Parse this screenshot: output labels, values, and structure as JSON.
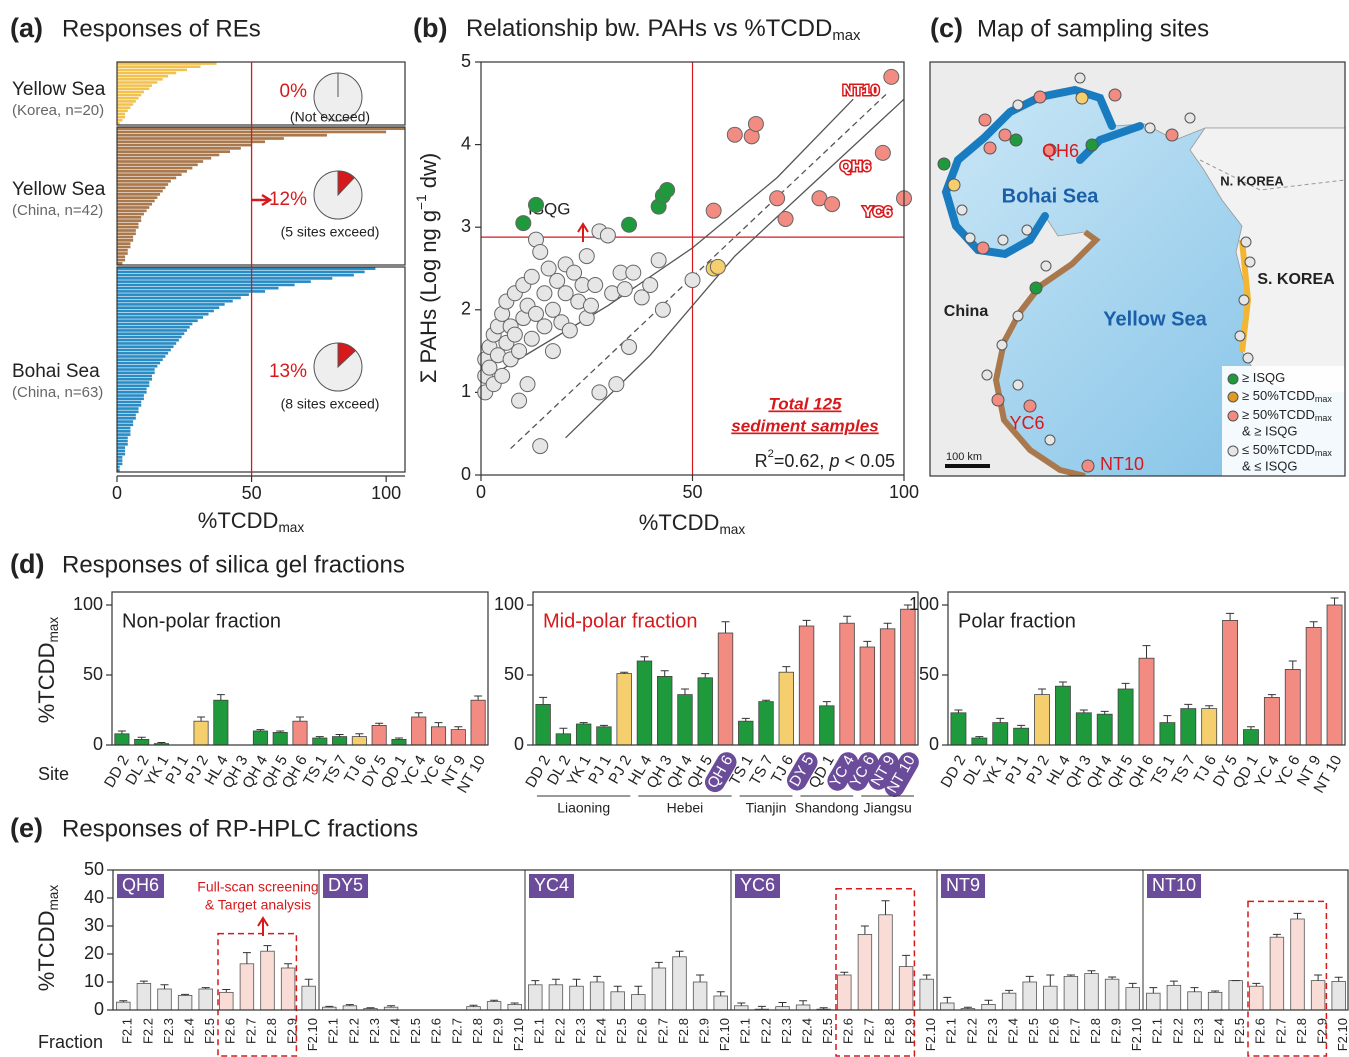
{
  "chart_data": [
    {
      "type": "hbar",
      "label": "(a)",
      "title": "Responses of REs",
      "xlim": [
        0,
        107
      ],
      "xticks": [
        0,
        50,
        100
      ],
      "xlabel": [
        "%TCDD",
        "max"
      ],
      "threshold": 50,
      "threshold_color": "#d7191c",
      "groups": [
        {
          "name": "Yellow Sea",
          "sub": "(Korea, n=20)",
          "color": "#f2c14e",
          "values": [
            37,
            31,
            26,
            22,
            19,
            17,
            15,
            13,
            12,
            10,
            9,
            8,
            7,
            6,
            5,
            4,
            3,
            3,
            2,
            1
          ],
          "pie": {
            "value": 0,
            "label": "0%",
            "note": "(Not exceed)"
          }
        },
        {
          "name": "Yellow Sea",
          "sub": "(China, n=42)",
          "color": "#a9784c",
          "values": [
            107,
            100,
            78,
            62,
            55,
            50,
            46,
            42,
            38,
            35,
            32,
            30,
            28,
            26,
            24,
            22,
            20,
            19,
            18,
            17,
            16,
            15,
            14,
            13,
            12,
            11,
            10,
            9,
            9,
            8,
            8,
            7,
            7,
            6,
            6,
            5,
            5,
            4,
            4,
            3,
            3,
            2
          ],
          "pie": {
            "value": 12,
            "label": "12%",
            "note": "(5 sites exceed)"
          }
        },
        {
          "name": "Bohai Sea",
          "sub": "(China, n=63)",
          "color": "#2a8cc4",
          "values": [
            96,
            92,
            88,
            80,
            72,
            66,
            60,
            55,
            49,
            46,
            43,
            40,
            38,
            36,
            34,
            32,
            30,
            28,
            27,
            26,
            25,
            24,
            23,
            22,
            21,
            20,
            19,
            18,
            17,
            16,
            15,
            14,
            14,
            13,
            13,
            12,
            12,
            11,
            11,
            10,
            10,
            9,
            9,
            8,
            8,
            7,
            7,
            6,
            6,
            5,
            5,
            5,
            4,
            4,
            4,
            3,
            3,
            3,
            2,
            2,
            2,
            1,
            1
          ],
          "pie": {
            "value": 13,
            "label": "13%",
            "note": "(8 sites exceed)"
          }
        }
      ]
    },
    {
      "type": "scatter",
      "label": "(b)",
      "title": [
        "Relationship bw. PAHs vs %TCDD",
        "max"
      ],
      "xlim": [
        0,
        100
      ],
      "ylim": [
        0,
        5
      ],
      "xticks": [
        0,
        50,
        100
      ],
      "yticks": [
        0,
        1,
        2,
        3,
        4,
        5
      ],
      "xlabel": [
        "%TCDD",
        "max"
      ],
      "ylabel": [
        "Σ PAHs (Log ng g",
        "−1",
        " dw)"
      ],
      "threshold_x": 50,
      "isqg": {
        "value": 2.88,
        "label": "ISQG"
      },
      "fit": {
        "x": [
          7,
          96
        ],
        "y": [
          0.32,
          4.62
        ]
      },
      "ci": [
        {
          "x": [
            4,
            30,
            50,
            70,
            88
          ],
          "y": [
            1.25,
            2.05,
            2.75,
            3.6,
            4.55
          ]
        },
        {
          "x": [
            20,
            40,
            60,
            80,
            100
          ],
          "y": [
            0.45,
            1.45,
            2.65,
            3.6,
            4.55
          ]
        }
      ],
      "series": [
        {
          "color": "#e6e6e6",
          "x": [
            1,
            1,
            1,
            2,
            2,
            3,
            3,
            4,
            4,
            5,
            5,
            6,
            6,
            7,
            7,
            8,
            8,
            9,
            9,
            10,
            10,
            11,
            11,
            12,
            12,
            13,
            13,
            14,
            15,
            15,
            16,
            17,
            17,
            18,
            19,
            20,
            20,
            21,
            22,
            23,
            24,
            25,
            25,
            26,
            27,
            28,
            30,
            31,
            33,
            34,
            35,
            36,
            38,
            40,
            42,
            43,
            50,
            14,
            28,
            32
          ],
          "y": [
            1.0,
            1.2,
            1.4,
            1.3,
            1.55,
            1.1,
            1.7,
            1.45,
            1.8,
            1.2,
            1.95,
            1.6,
            2.1,
            1.4,
            1.8,
            1.7,
            2.2,
            0.9,
            1.5,
            1.9,
            2.3,
            1.1,
            2.05,
            1.65,
            2.4,
            1.95,
            2.85,
            2.7,
            2.2,
            1.8,
            2.5,
            1.5,
            2.0,
            2.35,
            1.85,
            2.55,
            2.2,
            1.75,
            2.45,
            2.1,
            2.3,
            2.65,
            1.9,
            2.05,
            2.3,
            2.95,
            2.9,
            2.2,
            2.45,
            2.25,
            1.55,
            2.45,
            2.15,
            2.3,
            2.6,
            2.0,
            2.36,
            0.35,
            1.0,
            1.1
          ]
        },
        {
          "color": "#1e9a3c",
          "x": [
            10,
            13,
            35,
            42,
            43,
            44
          ],
          "y": [
            3.05,
            3.27,
            3.03,
            3.25,
            3.38,
            3.45
          ]
        },
        {
          "color": "#f5cf6e",
          "x": [
            55,
            56
          ],
          "y": [
            2.5,
            2.52
          ]
        },
        {
          "color": "#f28b82",
          "x": [
            55,
            60,
            64,
            65,
            70,
            72,
            80,
            83,
            95,
            97,
            100
          ],
          "y": [
            3.2,
            4.12,
            4.1,
            4.25,
            3.35,
            3.1,
            3.35,
            3.28,
            3.9,
            4.82,
            3.35
          ],
          "labels": [
            null,
            null,
            null,
            null,
            null,
            null,
            null,
            null,
            "QH6",
            "NT10",
            "YC6"
          ]
        }
      ],
      "note": [
        "Total 125",
        "sediment samples"
      ],
      "stat": [
        "R",
        "2",
        "=0.62, ",
        "p",
        " < 0.05"
      ]
    },
    {
      "type": "bar",
      "title": "Non-polar fraction",
      "title_color": "#222222",
      "ylim": [
        0,
        100
      ],
      "yticks": [
        0,
        50,
        100
      ],
      "ylabel": [
        "%TCDD",
        "max"
      ],
      "xlabel": "Site",
      "categories": [
        "DD 2",
        "DL 2",
        "YK 1",
        "PJ 1",
        "PJ 2",
        "HL 4",
        "QH 3",
        "QH 4",
        "QH 5",
        "QH 6",
        "TS 1",
        "TS 7",
        "TJ 6",
        "DY 5",
        "QD 1",
        "YC 4",
        "YC 6",
        "NT 9",
        "NT 10"
      ],
      "values": [
        8,
        4,
        1,
        0,
        17,
        32,
        0,
        10,
        9,
        17,
        5,
        6,
        6,
        14,
        4,
        20,
        13,
        11,
        32
      ],
      "errors": [
        2,
        1.5,
        0.8,
        0,
        3,
        4,
        0,
        1,
        1,
        3,
        1,
        1.5,
        2,
        1.5,
        1,
        3,
        3,
        2,
        3
      ],
      "colors": [
        "#1e9a3c",
        "#1e9a3c",
        "#1e9a3c",
        "#1e9a3c",
        "#f5cf6e",
        "#1e9a3c",
        "#1e9a3c",
        "#1e9a3c",
        "#1e9a3c",
        "#f28b82",
        "#1e9a3c",
        "#1e9a3c",
        "#f5cf6e",
        "#f28b82",
        "#1e9a3c",
        "#f28b82",
        "#f28b82",
        "#f28b82",
        "#f28b82"
      ]
    },
    {
      "type": "bar",
      "title": "Mid-polar fraction",
      "title_color": "#d7191c",
      "ylim": [
        0,
        100
      ],
      "yticks": [
        0,
        50,
        100
      ],
      "categories": [
        "DD 2",
        "DL 2",
        "YK 1",
        "PJ 1",
        "PJ 2",
        "HL 4",
        "QH 3",
        "QH 4",
        "QH 5",
        "QH 6",
        "TS 1",
        "TS 7",
        "TJ 6",
        "DY 5",
        "QD 1",
        "YC 4",
        "YC 6",
        "NT 9",
        "NT 10"
      ],
      "values": [
        29,
        8,
        15,
        13,
        51,
        60,
        49,
        36,
        48,
        80,
        17,
        31,
        52,
        85,
        28,
        87,
        70,
        83,
        97
      ],
      "errors": [
        5,
        4,
        1,
        1,
        1,
        3,
        4,
        4,
        3,
        8,
        2,
        1,
        4,
        4,
        3,
        5,
        4,
        4,
        3
      ],
      "colors": [
        "#1e9a3c",
        "#1e9a3c",
        "#1e9a3c",
        "#1e9a3c",
        "#f5cf6e",
        "#1e9a3c",
        "#1e9a3c",
        "#1e9a3c",
        "#1e9a3c",
        "#f28b82",
        "#1e9a3c",
        "#1e9a3c",
        "#f5cf6e",
        "#f28b82",
        "#1e9a3c",
        "#f28b82",
        "#f28b82",
        "#f28b82",
        "#f28b82"
      ],
      "highlight": [
        9,
        13,
        15,
        16,
        17,
        18
      ],
      "highlight_color": "#6b4c9a",
      "regions": [
        {
          "name": "Liaoning",
          "count": 5
        },
        {
          "name": "Hebei",
          "count": 5
        },
        {
          "name": "Tianjin",
          "count": 3
        },
        {
          "name": "Shandong",
          "count": 3
        },
        {
          "name": "Jiangsu",
          "count": 3
        }
      ]
    },
    {
      "type": "bar",
      "title": "Polar fraction",
      "title_color": "#222222",
      "ylim": [
        0,
        100
      ],
      "yticks": [
        0,
        50,
        100
      ],
      "categories": [
        "DD 2",
        "DL 2",
        "YK 1",
        "PJ 1",
        "PJ 2",
        "HL 4",
        "QH 3",
        "QH 4",
        "QH 5",
        "QH 6",
        "TS 1",
        "TS 7",
        "TJ 6",
        "DY 5",
        "QD 1",
        "YC 4",
        "YC 6",
        "NT 9",
        "NT 10"
      ],
      "values": [
        23,
        5,
        16,
        12,
        36,
        42,
        23,
        22,
        40,
        62,
        16,
        26,
        26,
        89,
        11,
        34,
        54,
        84,
        100
      ],
      "errors": [
        2,
        1,
        3,
        2,
        4,
        3,
        2,
        2,
        4,
        9,
        5,
        3,
        2,
        5,
        2,
        2,
        6,
        4,
        5
      ],
      "colors": [
        "#1e9a3c",
        "#1e9a3c",
        "#1e9a3c",
        "#1e9a3c",
        "#f5cf6e",
        "#1e9a3c",
        "#1e9a3c",
        "#1e9a3c",
        "#1e9a3c",
        "#f28b82",
        "#1e9a3c",
        "#1e9a3c",
        "#f5cf6e",
        "#f28b82",
        "#1e9a3c",
        "#f28b82",
        "#f28b82",
        "#f28b82",
        "#f28b82"
      ]
    },
    {
      "type": "grouped-bar",
      "ylim": [
        0,
        50
      ],
      "yticks": [
        0,
        10,
        20,
        30,
        40,
        50
      ],
      "ylabel": [
        "%TCDD",
        "max"
      ],
      "xlabel": "Fraction",
      "categories": [
        "F2.1",
        "F2.2",
        "F2.3",
        "F2.4",
        "F2.5",
        "F2.6",
        "F2.7",
        "F2.8",
        "F2.9",
        "F2.10"
      ],
      "color": "#e6e6e6",
      "highlight_color": "#fadcd6",
      "group_color": "#6b4c9a",
      "box_color": "#d7191c",
      "groups": [
        {
          "name": "QH6",
          "values": [
            2.8,
            9.5,
            7.5,
            5.2,
            7.5,
            6.3,
            16.5,
            21,
            15,
            8.5
          ],
          "errors": [
            0.5,
            0.8,
            1.5,
            0.4,
            0.5,
            1,
            4,
            2,
            1.5,
            2.5
          ],
          "box_range": [
            5,
            8
          ]
        },
        {
          "name": "DY5",
          "values": [
            1,
            1.5,
            0.5,
            1,
            0,
            0,
            0,
            1.2,
            3,
            2
          ],
          "errors": [
            0.3,
            0.4,
            0.3,
            0.5,
            0,
            0,
            0,
            0.5,
            0.5,
            0.5
          ]
        },
        {
          "name": "YC4",
          "values": [
            9,
            9,
            8.5,
            10,
            6.5,
            5.5,
            15,
            19,
            10,
            5
          ],
          "errors": [
            1.5,
            2,
            2.5,
            2,
            2,
            3,
            2,
            2,
            2.5,
            1.5
          ]
        },
        {
          "name": "YC6",
          "values": [
            1.5,
            0.3,
            1.2,
            1.8,
            0.3,
            12.5,
            27,
            34,
            15.5,
            11
          ],
          "errors": [
            1,
            1,
            1.5,
            1.5,
            0.5,
            1,
            3,
            5,
            4,
            1.5
          ],
          "box_range": [
            5,
            8
          ]
        },
        {
          "name": "NT9",
          "values": [
            2.5,
            0.5,
            2,
            6,
            10,
            8.5,
            12,
            13,
            11,
            8
          ],
          "errors": [
            2,
            0.5,
            1.5,
            1,
            2,
            4,
            0.5,
            1,
            0.8,
            1.5
          ]
        },
        {
          "name": "NT10",
          "values": [
            6,
            8.8,
            6.5,
            6.3,
            10.5,
            8.5,
            26,
            32.5,
            10.5,
            10.2
          ],
          "errors": [
            2,
            1.5,
            1.5,
            0.5,
            0,
            1,
            1,
            2,
            2,
            1.5
          ],
          "box_range": [
            5,
            8
          ]
        }
      ],
      "annotation": [
        "Full-scan screening",
        "& Target analysis"
      ]
    }
  ],
  "panels": {
    "d": {
      "label": "(d)",
      "title": "Responses of silica gel fractions"
    },
    "e": {
      "label": "(e)",
      "title": "Responses of RP-HPLC fractions"
    }
  },
  "map": {
    "label": "(c)",
    "title": "Map of sampling sites",
    "china": "China",
    "n_korea": "N. KOREA",
    "s_korea": "S. KOREA",
    "bohai": "Bohai Sea",
    "yellow_sea": "Yellow Sea",
    "qh6": "QH6",
    "yc6": "YC6",
    "nt10": "NT10",
    "scale": "100 km",
    "legend": [
      [
        "≥ ISQG"
      ],
      [
        "≥ 50%TCDD",
        "max"
      ],
      [
        "≥ 50%TCDD",
        "max",
        "& ≥ ISQG"
      ],
      [
        "≤ 50%TCDD",
        "max",
        "& ≤ ISQG"
      ]
    ]
  }
}
